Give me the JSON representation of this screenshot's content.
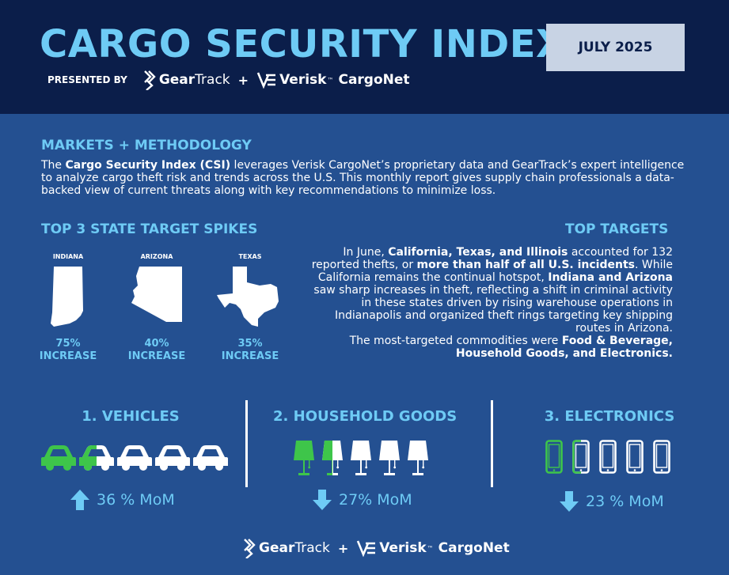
{
  "header": {
    "title": "CARGO SECURITY INDEX",
    "presented_by": "PRESENTED BY",
    "date": "JULY 2025",
    "logo_geartrack": {
      "gear": "Gear",
      "track": "Track"
    },
    "logo_verisk": {
      "verisk": "Verisk",
      "tm": "™",
      "cargonet": "CargoNet"
    },
    "plus": "+"
  },
  "methodology": {
    "title": "MARKETS + METHODOLOGY",
    "p1": "The ",
    "b1": "Cargo Security Index (CSI)",
    "p2": " leverages Verisk CargoNet’s proprietary data and GearTrack’s expert intelligence to analyze cargo theft risk and trends across the U.S. This monthly report gives supply chain professionals a data-backed view of current threats along with key recommendations to minimize loss."
  },
  "spikes": {
    "title": "TOP 3 STATE TARGET SPIKES",
    "states": [
      {
        "name": "INDIANA",
        "pct": "75%",
        "label": "INCREASE"
      },
      {
        "name": "ARIZONA",
        "pct": "40%",
        "label": "INCREASE"
      },
      {
        "name": "TEXAS",
        "pct": "35%",
        "label": "INCREASE"
      }
    ]
  },
  "targets": {
    "title": "TOP TARGETS",
    "t1": "In June, ",
    "b1": "California, Texas, and Illinois",
    "t2": " accounted for 132 reported thefts, or ",
    "b2": "more than half of all U.S. incidents",
    "t3": ". While California remains the continual hotspot, ",
    "b3": "Indiana and Arizona",
    "t4": " saw sharp increases in theft, reflecting a shift in criminal activity in these states driven by rising warehouse operations in Indianapolis and organized theft rings targeting key shipping routes in Arizona.",
    "t5": "The most-targeted commodities were ",
    "b4": "Food & Beverage, Household Goods, and Electronics."
  },
  "categories": [
    {
      "title": "1. VEHICLES",
      "mom": "36 % MoM",
      "direction": "up",
      "icon": "car-icon",
      "filled": 1.5,
      "total": 5
    },
    {
      "title": "2. HOUSEHOLD GOODS",
      "mom": "27%  MoM",
      "direction": "down",
      "icon": "lamp-icon",
      "filled": 1.5,
      "total": 5
    },
    {
      "title": "3. ELECTRONICS",
      "mom": "23 % MoM",
      "direction": "down",
      "icon": "phone-icon",
      "filled": 1.5,
      "total": 5
    }
  ],
  "colors": {
    "accent": "#6ecbf5",
    "green": "#3ec54a",
    "header": "#0b1e4a",
    "background": "#245091"
  }
}
